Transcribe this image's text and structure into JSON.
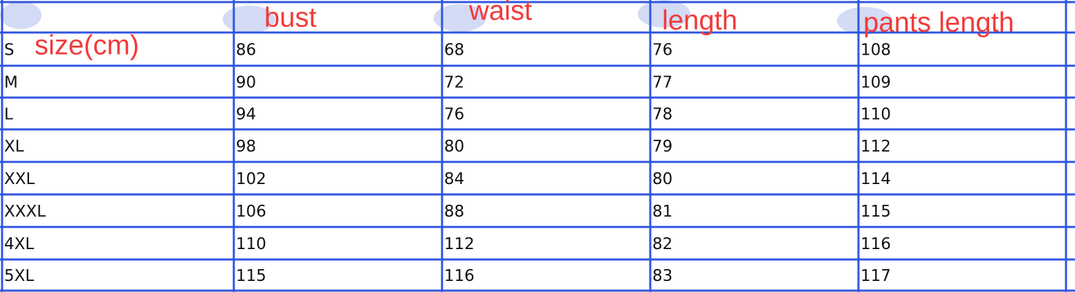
{
  "header": [
    "size(cm)",
    "bust",
    "waist",
    "length",
    "pants length"
  ],
  "table": {
    "rows": [
      [
        "S",
        "86",
        "68",
        "76",
        "108"
      ],
      [
        "M",
        "90",
        "72",
        "77",
        "109"
      ],
      [
        "L",
        "94",
        "76",
        "78",
        "110"
      ],
      [
        "XL",
        "98",
        "80",
        "79",
        "112"
      ],
      [
        "XXL",
        "102",
        "84",
        "80",
        "114"
      ],
      [
        "XXXL",
        "106",
        "88",
        "81",
        "115"
      ],
      [
        "4XL",
        "110",
        "112",
        "82",
        "116"
      ],
      [
        "5XL",
        "115",
        "116",
        "83",
        "117"
      ]
    ]
  }
}
